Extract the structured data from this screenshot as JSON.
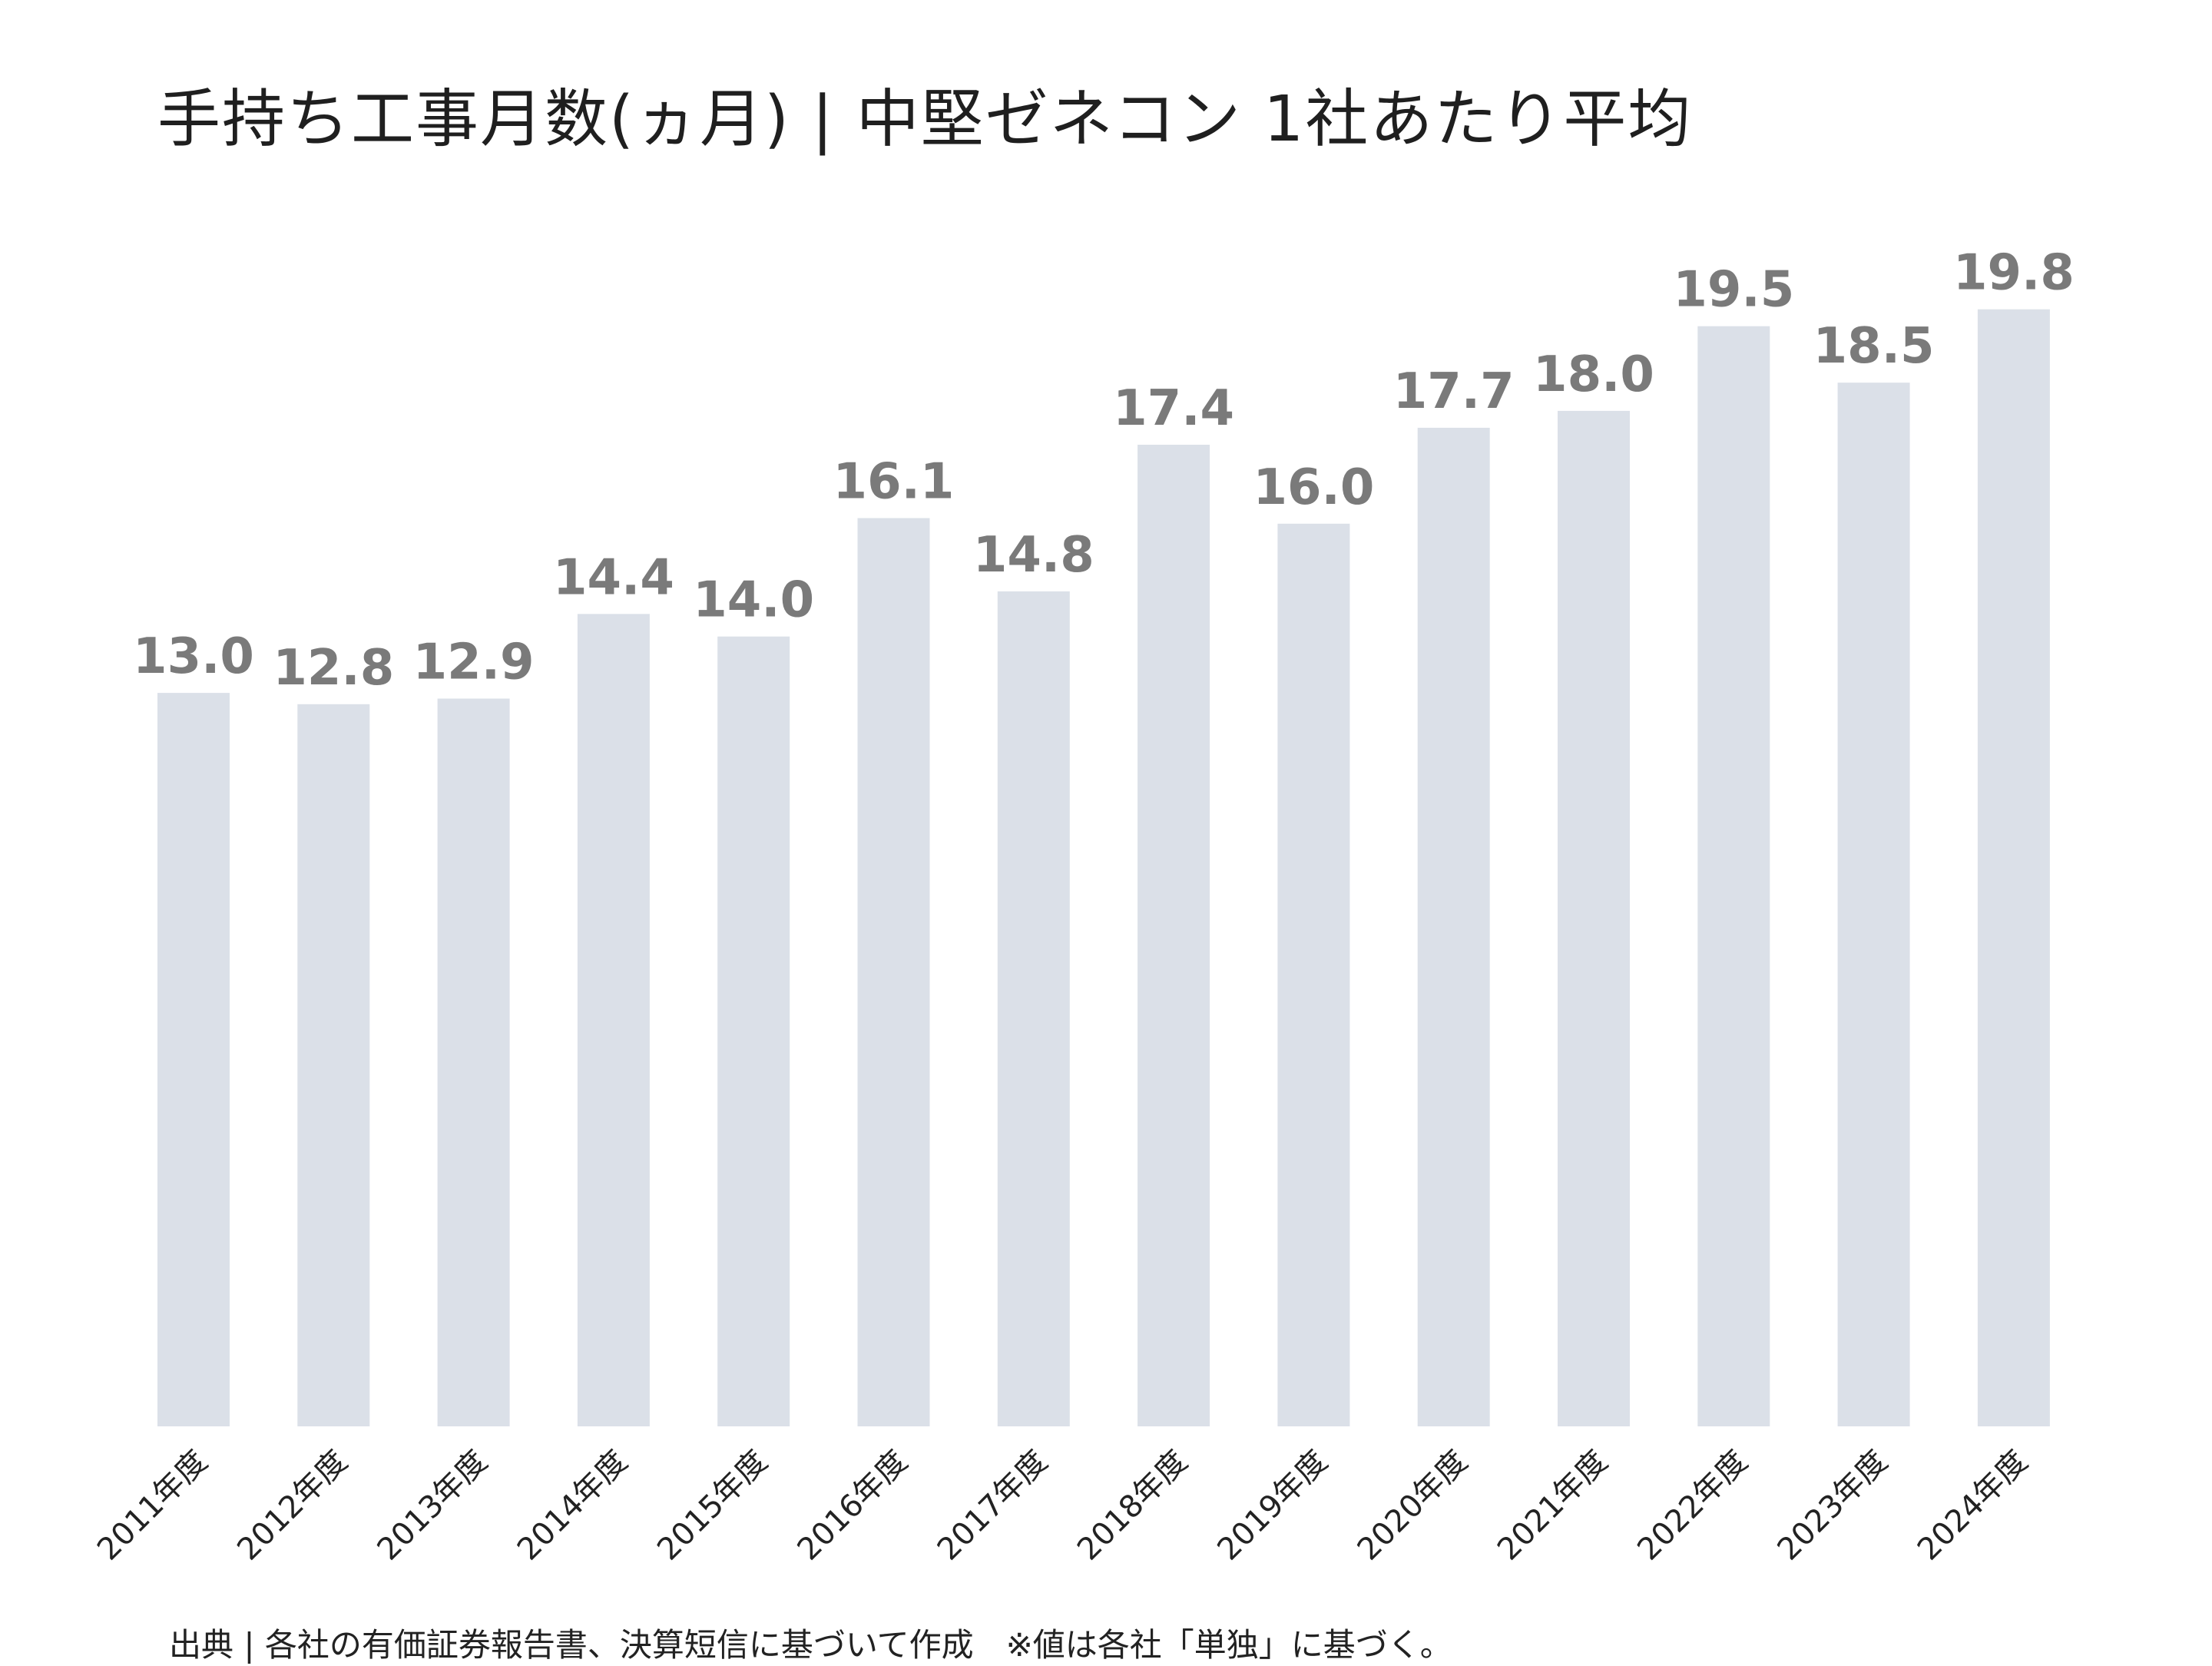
{
  "title": "手持ち工事月数(ヵ月) | 中堅ゼネコン 1社あたり平均",
  "footnote": "出典 | 各社の有価証券報告書、決算短信に基づいて作成　※値は各社「単独」に基づく。",
  "colors": {
    "bar": "#dbe0e8",
    "value_label": "#7a7a7a",
    "tick_label": "#222222",
    "title": "#1f1f1f"
  },
  "chart_data": {
    "type": "bar",
    "title": "手持ち工事月数(ヵ月) | 中堅ゼネコン 1社あたり平均",
    "categories": [
      "2011年度",
      "2012年度",
      "2013年度",
      "2014年度",
      "2015年度",
      "2016年度",
      "2017年度",
      "2018年度",
      "2019年度",
      "2020年度",
      "2021年度",
      "2022年度",
      "2023年度",
      "2024年度"
    ],
    "values": [
      13.0,
      12.8,
      12.9,
      14.4,
      14.0,
      16.1,
      14.8,
      17.4,
      16.0,
      17.7,
      18.0,
      19.5,
      18.5,
      19.8
    ],
    "value_labels": [
      "13.0",
      "12.8",
      "12.9",
      "14.4",
      "14.0",
      "16.1",
      "14.8",
      "17.4",
      "16.0",
      "17.7",
      "18.0",
      "19.5",
      "18.5",
      "19.8"
    ],
    "xlabel": "",
    "ylabel": "",
    "ylim": [
      0,
      20
    ],
    "grid": false,
    "legend": "none",
    "data_labels": true
  }
}
